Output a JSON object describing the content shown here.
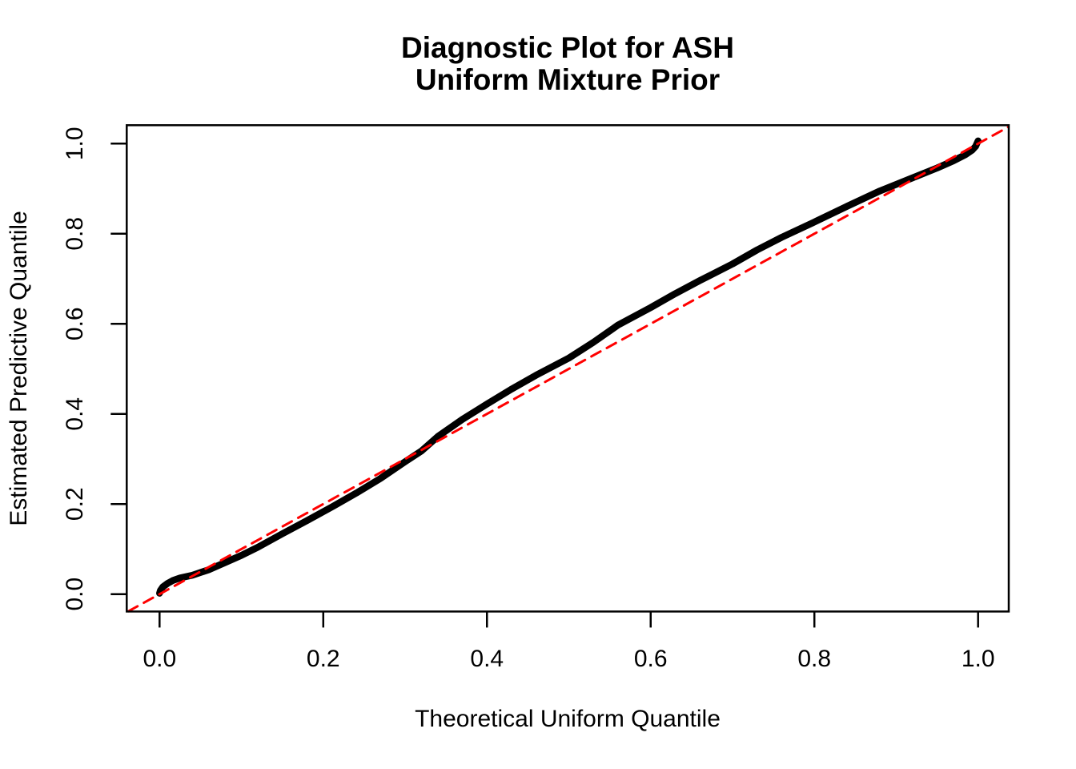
{
  "title": {
    "line1": "Diagnostic Plot for ASH",
    "line2": "Uniform Mixture Prior"
  },
  "colors": {
    "background": "#ffffff",
    "axis": "#000000",
    "curve": "#000000",
    "reference_line": "#ff0000"
  },
  "chart_data": {
    "type": "line",
    "subtype": "qq-uniform-diagnostic",
    "title": "Diagnostic Plot for ASH",
    "subtitle": "Uniform Mixture Prior",
    "xlabel": "Theoretical Uniform Quantile",
    "ylabel": "Estimated Predictive Quantile",
    "xlim": [
      -0.04,
      1.037
    ],
    "ylim": [
      -0.038,
      1.042
    ],
    "grid": false,
    "legend_position": "none",
    "x_tick_values": [
      0.0,
      0.2,
      0.4,
      0.6,
      0.8,
      1.0
    ],
    "x_tick_labels": [
      "0.0",
      "0.2",
      "0.4",
      "0.6",
      "0.8",
      "1.0"
    ],
    "y_tick_values": [
      0.0,
      0.2,
      0.4,
      0.6,
      0.8,
      1.0
    ],
    "y_tick_labels": [
      "0.0",
      "0.2",
      "0.4",
      "0.6",
      "0.8",
      "1.0"
    ],
    "series": [
      {
        "name": "estimated-predictive-quantile-curve",
        "type": "line",
        "style": "solid",
        "color": "#000000",
        "line_width": 8.5,
        "points": [
          [
            0.0,
            0.002
          ],
          [
            0.001,
            0.008
          ],
          [
            0.004,
            0.016
          ],
          [
            0.01,
            0.024
          ],
          [
            0.016,
            0.03
          ],
          [
            0.025,
            0.036
          ],
          [
            0.04,
            0.042
          ],
          [
            0.06,
            0.054
          ],
          [
            0.08,
            0.07
          ],
          [
            0.1,
            0.086
          ],
          [
            0.12,
            0.104
          ],
          [
            0.15,
            0.134
          ],
          [
            0.18,
            0.163
          ],
          [
            0.21,
            0.193
          ],
          [
            0.24,
            0.224
          ],
          [
            0.27,
            0.257
          ],
          [
            0.3,
            0.294
          ],
          [
            0.32,
            0.318
          ],
          [
            0.34,
            0.35
          ],
          [
            0.37,
            0.388
          ],
          [
            0.4,
            0.422
          ],
          [
            0.43,
            0.455
          ],
          [
            0.46,
            0.486
          ],
          [
            0.5,
            0.524
          ],
          [
            0.53,
            0.559
          ],
          [
            0.56,
            0.597
          ],
          [
            0.6,
            0.636
          ],
          [
            0.63,
            0.667
          ],
          [
            0.66,
            0.696
          ],
          [
            0.7,
            0.733
          ],
          [
            0.73,
            0.764
          ],
          [
            0.76,
            0.792
          ],
          [
            0.8,
            0.826
          ],
          [
            0.84,
            0.861
          ],
          [
            0.88,
            0.895
          ],
          [
            0.92,
            0.924
          ],
          [
            0.95,
            0.946
          ],
          [
            0.97,
            0.962
          ],
          [
            0.985,
            0.976
          ],
          [
            0.993,
            0.986
          ],
          [
            0.997,
            0.994
          ],
          [
            1.0,
            1.006
          ]
        ]
      },
      {
        "name": "identity-reference-line",
        "type": "line",
        "style": "dashed",
        "color": "#ff0000",
        "line_width": 3,
        "points": [
          [
            -0.038,
            -0.038
          ],
          [
            1.037,
            1.037
          ]
        ]
      }
    ]
  }
}
